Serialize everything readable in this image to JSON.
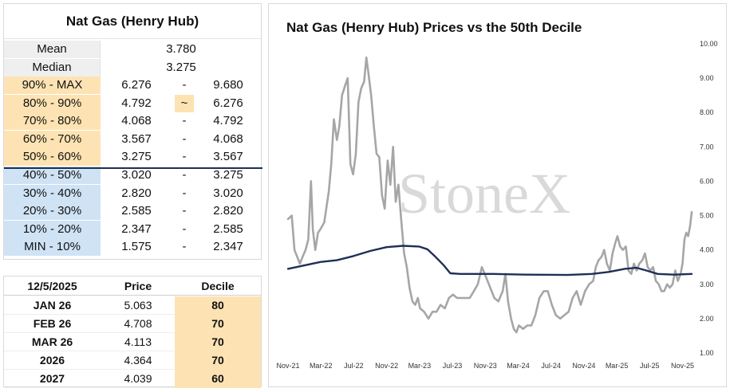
{
  "decile_table": {
    "title": "Nat Gas (Henry Hub)",
    "mean": {
      "label": "Mean",
      "value": "3.780"
    },
    "median": {
      "label": "Median",
      "value": "3.275"
    },
    "rows": [
      {
        "label": "90% - MAX",
        "low": "6.276",
        "sep": "-",
        "high": "9.680",
        "zone": "hi"
      },
      {
        "label": "80% - 90%",
        "low": "4.792",
        "sep": "~",
        "high": "6.276",
        "zone": "hi",
        "current": true
      },
      {
        "label": "70% - 80%",
        "low": "4.068",
        "sep": "-",
        "high": "4.792",
        "zone": "hi"
      },
      {
        "label": "60% - 70%",
        "low": "3.567",
        "sep": "-",
        "high": "4.068",
        "zone": "hi"
      },
      {
        "label": "50% - 60%",
        "low": "3.275",
        "sep": "-",
        "high": "3.567",
        "zone": "hi"
      },
      {
        "label": "40% - 50%",
        "low": "3.020",
        "sep": "-",
        "high": "3.275",
        "zone": "lo"
      },
      {
        "label": "30% - 40%",
        "low": "2.820",
        "sep": "-",
        "high": "3.020",
        "zone": "lo"
      },
      {
        "label": "20% - 30%",
        "low": "2.585",
        "sep": "-",
        "high": "2.820",
        "zone": "lo"
      },
      {
        "label": "10% - 20%",
        "low": "2.347",
        "sep": "-",
        "high": "2.585",
        "zone": "lo"
      },
      {
        "label": "MIN - 10%",
        "low": "1.575",
        "sep": "-",
        "high": "2.347",
        "zone": "lo"
      }
    ]
  },
  "forward_table": {
    "headers": {
      "date": "12/5/2025",
      "price": "Price",
      "decile": "Decile"
    },
    "rows": [
      {
        "contract": "JAN 26",
        "price": "5.063",
        "decile": "80"
      },
      {
        "contract": "FEB 26",
        "price": "4.708",
        "decile": "70"
      },
      {
        "contract": "MAR 26",
        "price": "4.113",
        "decile": "70"
      },
      {
        "contract": "2026",
        "price": "4.364",
        "decile": "70"
      },
      {
        "contract": "2027",
        "price": "4.039",
        "decile": "60"
      }
    ]
  },
  "chart_data": {
    "type": "line",
    "title": "Nat Gas (Henry Hub) Prices vs the 50th Decile",
    "watermark": "StoneX",
    "x_tick_labels": [
      "Nov-21",
      "Mar-22",
      "Jul-22",
      "Nov-22",
      "Mar-23",
      "Jul-23",
      "Nov-23",
      "Mar-24",
      "Jul-24",
      "Nov-24",
      "Mar-25",
      "Jul-25",
      "Nov-25"
    ],
    "y_tick_labels": [
      "1.00",
      "2.00",
      "3.00",
      "4.00",
      "5.00",
      "6.00",
      "7.00",
      "8.00",
      "9.00",
      "10.00"
    ],
    "ylim": [
      1,
      10
    ],
    "y_axis_side": "right",
    "colors": {
      "price": "#a6a6a6",
      "decile": "#1f2f56"
    },
    "series": [
      {
        "name": "",
        "color": "#a6a6a6",
        "points": [
          [
            "2021-11-01",
            4.9
          ],
          [
            "2021-11-15",
            5.0
          ],
          [
            "2021-11-25",
            4.0
          ],
          [
            "2021-12-05",
            3.8
          ],
          [
            "2021-12-15",
            3.6
          ],
          [
            "2021-12-25",
            3.8
          ],
          [
            "2022-01-05",
            4.0
          ],
          [
            "2022-01-15",
            4.3
          ],
          [
            "2022-01-25",
            6.0
          ],
          [
            "2022-02-01",
            4.6
          ],
          [
            "2022-02-10",
            4.0
          ],
          [
            "2022-02-20",
            4.5
          ],
          [
            "2022-03-01",
            4.6
          ],
          [
            "2022-03-15",
            4.8
          ],
          [
            "2022-04-01",
            5.7
          ],
          [
            "2022-04-10",
            6.5
          ],
          [
            "2022-04-20",
            7.8
          ],
          [
            "2022-05-01",
            7.2
          ],
          [
            "2022-05-10",
            7.6
          ],
          [
            "2022-05-20",
            8.5
          ],
          [
            "2022-06-01",
            8.8
          ],
          [
            "2022-06-10",
            9.0
          ],
          [
            "2022-06-20",
            6.5
          ],
          [
            "2022-06-30",
            6.2
          ],
          [
            "2022-07-10",
            6.8
          ],
          [
            "2022-07-20",
            8.3
          ],
          [
            "2022-07-30",
            8.7
          ],
          [
            "2022-08-10",
            8.9
          ],
          [
            "2022-08-18",
            9.6
          ],
          [
            "2022-08-25",
            9.2
          ],
          [
            "2022-09-05",
            8.5
          ],
          [
            "2022-09-15",
            7.6
          ],
          [
            "2022-09-25",
            6.8
          ],
          [
            "2022-10-05",
            6.7
          ],
          [
            "2022-10-15",
            5.6
          ],
          [
            "2022-10-25",
            5.2
          ],
          [
            "2022-11-05",
            6.6
          ],
          [
            "2022-11-15",
            5.9
          ],
          [
            "2022-11-25",
            7.0
          ],
          [
            "2022-12-05",
            5.4
          ],
          [
            "2022-12-15",
            5.9
          ],
          [
            "2022-12-25",
            4.9
          ],
          [
            "2023-01-05",
            3.9
          ],
          [
            "2023-01-15",
            3.5
          ],
          [
            "2023-01-25",
            2.9
          ],
          [
            "2023-02-05",
            2.5
          ],
          [
            "2023-02-15",
            2.4
          ],
          [
            "2023-02-25",
            2.6
          ],
          [
            "2023-03-05",
            2.3
          ],
          [
            "2023-03-20",
            2.2
          ],
          [
            "2023-04-05",
            2.0
          ],
          [
            "2023-04-20",
            2.2
          ],
          [
            "2023-05-05",
            2.2
          ],
          [
            "2023-05-20",
            2.4
          ],
          [
            "2023-06-05",
            2.3
          ],
          [
            "2023-06-20",
            2.6
          ],
          [
            "2023-07-05",
            2.7
          ],
          [
            "2023-07-20",
            2.6
          ],
          [
            "2023-08-05",
            2.6
          ],
          [
            "2023-08-20",
            2.6
          ],
          [
            "2023-09-05",
            2.6
          ],
          [
            "2023-09-20",
            2.8
          ],
          [
            "2023-10-05",
            3.0
          ],
          [
            "2023-10-20",
            3.5
          ],
          [
            "2023-11-05",
            3.2
          ],
          [
            "2023-11-20",
            2.9
          ],
          [
            "2023-12-05",
            2.6
          ],
          [
            "2023-12-20",
            2.5
          ],
          [
            "2024-01-05",
            2.8
          ],
          [
            "2024-01-15",
            3.3
          ],
          [
            "2024-01-25",
            2.5
          ],
          [
            "2024-02-05",
            2.0
          ],
          [
            "2024-02-15",
            1.7
          ],
          [
            "2024-02-25",
            1.6
          ],
          [
            "2024-03-05",
            1.8
          ],
          [
            "2024-03-20",
            1.7
          ],
          [
            "2024-04-05",
            1.8
          ],
          [
            "2024-04-20",
            1.8
          ],
          [
            "2024-05-05",
            2.1
          ],
          [
            "2024-05-20",
            2.6
          ],
          [
            "2024-06-05",
            2.8
          ],
          [
            "2024-06-20",
            2.8
          ],
          [
            "2024-07-05",
            2.4
          ],
          [
            "2024-07-20",
            2.1
          ],
          [
            "2024-08-05",
            2.0
          ],
          [
            "2024-08-20",
            2.1
          ],
          [
            "2024-09-05",
            2.2
          ],
          [
            "2024-09-20",
            2.6
          ],
          [
            "2024-10-05",
            2.8
          ],
          [
            "2024-10-20",
            2.4
          ],
          [
            "2024-11-05",
            2.8
          ],
          [
            "2024-11-20",
            3.0
          ],
          [
            "2024-12-05",
            3.1
          ],
          [
            "2024-12-15",
            3.5
          ],
          [
            "2024-12-25",
            3.7
          ],
          [
            "2025-01-05",
            3.8
          ],
          [
            "2025-01-15",
            4.0
          ],
          [
            "2025-01-25",
            3.6
          ],
          [
            "2025-02-05",
            3.4
          ],
          [
            "2025-02-15",
            3.9
          ],
          [
            "2025-02-25",
            4.2
          ],
          [
            "2025-03-05",
            4.4
          ],
          [
            "2025-03-15",
            4.1
          ],
          [
            "2025-03-25",
            4.0
          ],
          [
            "2025-04-05",
            4.1
          ],
          [
            "2025-04-15",
            3.4
          ],
          [
            "2025-04-25",
            3.3
          ],
          [
            "2025-05-05",
            3.6
          ],
          [
            "2025-05-15",
            3.4
          ],
          [
            "2025-05-25",
            3.6
          ],
          [
            "2025-06-05",
            3.7
          ],
          [
            "2025-06-15",
            3.9
          ],
          [
            "2025-06-25",
            3.5
          ],
          [
            "2025-07-05",
            3.4
          ],
          [
            "2025-07-15",
            3.5
          ],
          [
            "2025-07-25",
            3.1
          ],
          [
            "2025-08-05",
            3.0
          ],
          [
            "2025-08-15",
            2.8
          ],
          [
            "2025-08-25",
            2.8
          ],
          [
            "2025-09-05",
            3.0
          ],
          [
            "2025-09-15",
            2.9
          ],
          [
            "2025-09-25",
            3.0
          ],
          [
            "2025-10-05",
            3.4
          ],
          [
            "2025-10-15",
            3.1
          ],
          [
            "2025-10-25",
            3.3
          ],
          [
            "2025-11-01",
            3.6
          ],
          [
            "2025-11-08",
            4.3
          ],
          [
            "2025-11-15",
            4.5
          ],
          [
            "2025-11-22",
            4.4
          ],
          [
            "2025-11-29",
            4.7
          ],
          [
            "2025-12-05",
            5.1
          ]
        ]
      },
      {
        "name": "",
        "color": "#1f2f56",
        "points": [
          [
            "2021-11-01",
            3.45
          ],
          [
            "2022-01-01",
            3.55
          ],
          [
            "2022-03-01",
            3.65
          ],
          [
            "2022-05-01",
            3.7
          ],
          [
            "2022-07-01",
            3.82
          ],
          [
            "2022-09-01",
            3.97
          ],
          [
            "2022-11-01",
            4.08
          ],
          [
            "2023-01-01",
            4.12
          ],
          [
            "2023-03-01",
            4.1
          ],
          [
            "2023-04-01",
            4.02
          ],
          [
            "2023-05-01",
            3.8
          ],
          [
            "2023-06-01",
            3.55
          ],
          [
            "2023-06-25",
            3.32
          ],
          [
            "2023-08-01",
            3.3
          ],
          [
            "2023-12-01",
            3.3
          ],
          [
            "2024-04-01",
            3.28
          ],
          [
            "2024-09-01",
            3.27
          ],
          [
            "2024-12-01",
            3.3
          ],
          [
            "2025-02-01",
            3.36
          ],
          [
            "2025-04-01",
            3.45
          ],
          [
            "2025-05-15",
            3.48
          ],
          [
            "2025-06-20",
            3.4
          ],
          [
            "2025-08-01",
            3.3
          ],
          [
            "2025-10-01",
            3.28
          ],
          [
            "2025-12-05",
            3.3
          ]
        ]
      }
    ]
  }
}
